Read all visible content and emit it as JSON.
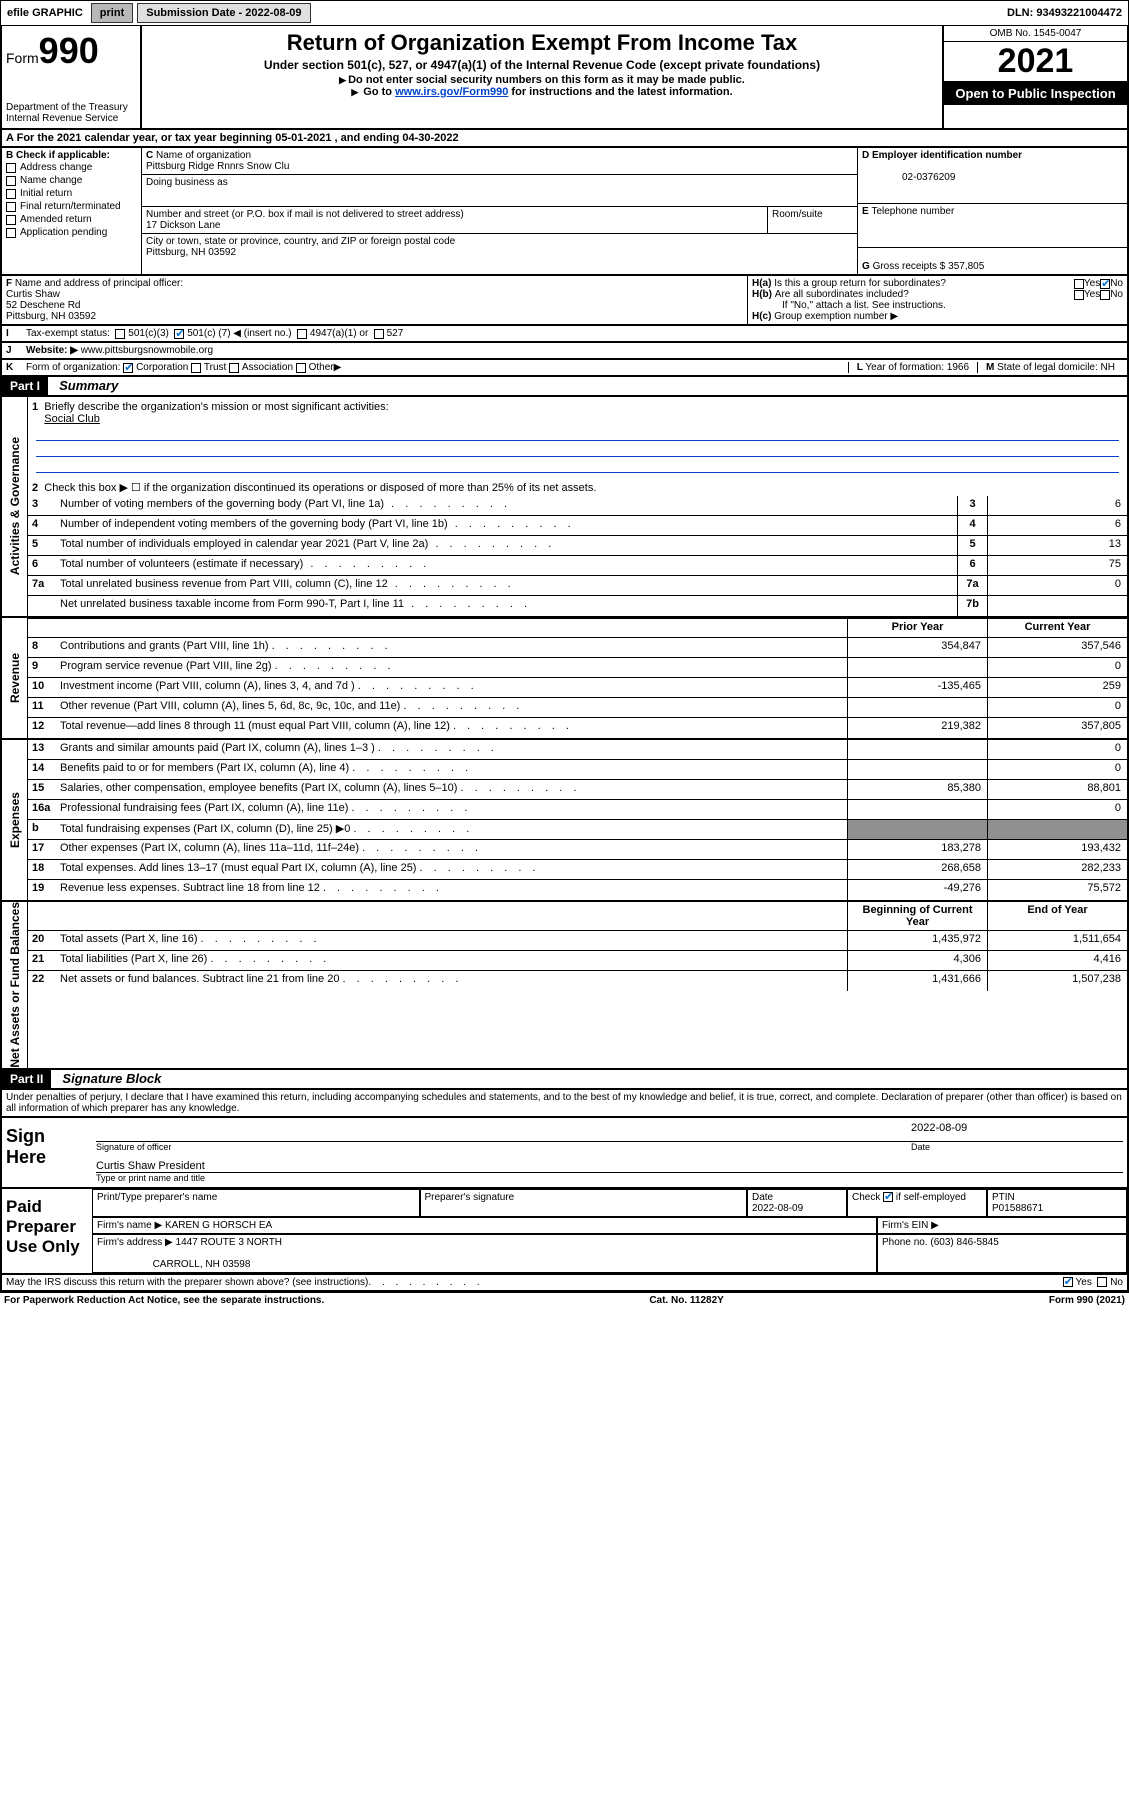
{
  "topbar": {
    "efile": "efile GRAPHIC",
    "print": "print",
    "sub_label": "Submission Date - 2022-08-09",
    "dln": "DLN: 93493221004472"
  },
  "header": {
    "form_label": "Form",
    "form_no": "990",
    "dept": "Department of the Treasury",
    "irs": "Internal Revenue Service",
    "title": "Return of Organization Exempt From Income Tax",
    "subtitle": "Under section 501(c), 527, or 4947(a)(1) of the Internal Revenue Code (except private foundations)",
    "note1": "Do not enter social security numbers on this form as it may be made public.",
    "note2_pre": "Go to ",
    "note2_link": "www.irs.gov/Form990",
    "note2_post": " for instructions and the latest information.",
    "omb": "OMB No. 1545-0047",
    "year": "2021",
    "open": "Open to Public Inspection"
  },
  "sectionA": {
    "text": "For the 2021 calendar year, or tax year beginning 05-01-2021   , and ending 04-30-2022"
  },
  "sectionB": {
    "label": "Check if applicable:",
    "items": [
      "Address change",
      "Name change",
      "Initial return",
      "Final return/terminated",
      "Amended return",
      "Application pending"
    ]
  },
  "sectionC": {
    "name_label": "Name of organization",
    "name": "Pittsburg Ridge Rnnrs Snow Clu",
    "dba_label": "Doing business as",
    "addr_label": "Number and street (or P.O. box if mail is not delivered to street address)",
    "room_label": "Room/suite",
    "addr": "17 Dickson Lane",
    "city_label": "City or town, state or province, country, and ZIP or foreign postal code",
    "city": "Pittsburg, NH  03592"
  },
  "sectionD": {
    "label": "Employer identification number",
    "ein": "02-0376209"
  },
  "sectionE": {
    "label": "Telephone number"
  },
  "sectionG": {
    "label": "Gross receipts $",
    "val": "357,805"
  },
  "sectionF": {
    "label": "Name and address of principal officer:",
    "name": "Curtis Shaw",
    "addr1": "52 Deschene Rd",
    "addr2": "Pittsburg, NH  03592"
  },
  "sectionH": {
    "a": "Is this a group return for subordinates?",
    "b": "Are all subordinates included?",
    "b_note": "If \"No,\" attach a list. See instructions.",
    "c": "Group exemption number"
  },
  "sectionI": {
    "label": "Tax-exempt status:",
    "o1": "501(c)(3)",
    "o2_pre": "501(c) (",
    "o2_val": "7",
    "o2_post": ") ◀ (insert no.)",
    "o3": "4947(a)(1) or",
    "o4": "527"
  },
  "sectionJ": {
    "label": "Website:",
    "val": "www.pittsburgsnowmobile.org"
  },
  "sectionK": {
    "label": "Form of organization:",
    "o1": "Corporation",
    "o2": "Trust",
    "o3": "Association",
    "o4": "Other"
  },
  "sectionL": {
    "label": "Year of formation:",
    "val": "1966"
  },
  "sectionM": {
    "label": "State of legal domicile:",
    "val": "NH"
  },
  "part1": {
    "tag": "Part I",
    "title": "Summary"
  },
  "summary": {
    "q1": "Briefly describe the organization's mission or most significant activities:",
    "q1_ans": "Social Club",
    "q2": "Check this box ▶ ☐  if the organization discontinued its operations or disposed of more than 25% of its net assets.",
    "ag": {
      "label": "Activities & Governance",
      "rows": [
        {
          "n": "3",
          "t": "Number of voting members of the governing body (Part VI, line 1a)",
          "box": "3",
          "v": "6"
        },
        {
          "n": "4",
          "t": "Number of independent voting members of the governing body (Part VI, line 1b)",
          "box": "4",
          "v": "6"
        },
        {
          "n": "5",
          "t": "Total number of individuals employed in calendar year 2021 (Part V, line 2a)",
          "box": "5",
          "v": "13"
        },
        {
          "n": "6",
          "t": "Total number of volunteers (estimate if necessary)",
          "box": "6",
          "v": "75"
        },
        {
          "n": "7a",
          "t": "Total unrelated business revenue from Part VIII, column (C), line 12",
          "box": "7a",
          "v": "0"
        },
        {
          "n": "",
          "t": "Net unrelated business taxable income from Form 990-T, Part I, line 11",
          "box": "7b",
          "v": ""
        }
      ]
    },
    "cols": {
      "prior": "Prior Year",
      "current": "Current Year"
    },
    "rev": {
      "label": "Revenue",
      "rows": [
        {
          "n": "8",
          "t": "Contributions and grants (Part VIII, line 1h)",
          "p": "354,847",
          "c": "357,546"
        },
        {
          "n": "9",
          "t": "Program service revenue (Part VIII, line 2g)",
          "p": "",
          "c": "0"
        },
        {
          "n": "10",
          "t": "Investment income (Part VIII, column (A), lines 3, 4, and 7d )",
          "p": "-135,465",
          "c": "259"
        },
        {
          "n": "11",
          "t": "Other revenue (Part VIII, column (A), lines 5, 6d, 8c, 9c, 10c, and 11e)",
          "p": "",
          "c": "0"
        },
        {
          "n": "12",
          "t": "Total revenue—add lines 8 through 11 (must equal Part VIII, column (A), line 12)",
          "p": "219,382",
          "c": "357,805"
        }
      ]
    },
    "exp": {
      "label": "Expenses",
      "rows": [
        {
          "n": "13",
          "t": "Grants and similar amounts paid (Part IX, column (A), lines 1–3 )",
          "p": "",
          "c": "0"
        },
        {
          "n": "14",
          "t": "Benefits paid to or for members (Part IX, column (A), line 4)",
          "p": "",
          "c": "0"
        },
        {
          "n": "15",
          "t": "Salaries, other compensation, employee benefits (Part IX, column (A), lines 5–10)",
          "p": "85,380",
          "c": "88,801"
        },
        {
          "n": "16a",
          "t": "Professional fundraising fees (Part IX, column (A), line 11e)",
          "p": "",
          "c": "0"
        },
        {
          "n": "b",
          "t": "Total fundraising expenses (Part IX, column (D), line 25) ▶0",
          "p": "GRAY",
          "c": "GRAY"
        },
        {
          "n": "17",
          "t": "Other expenses (Part IX, column (A), lines 11a–11d, 11f–24e)",
          "p": "183,278",
          "c": "193,432"
        },
        {
          "n": "18",
          "t": "Total expenses. Add lines 13–17 (must equal Part IX, column (A), line 25)",
          "p": "268,658",
          "c": "282,233"
        },
        {
          "n": "19",
          "t": "Revenue less expenses. Subtract line 18 from line 12",
          "p": "-49,276",
          "c": "75,572"
        }
      ]
    },
    "cols2": {
      "begin": "Beginning of Current Year",
      "end": "End of Year"
    },
    "na": {
      "label": "Net Assets or Fund Balances",
      "rows": [
        {
          "n": "20",
          "t": "Total assets (Part X, line 16)",
          "p": "1,435,972",
          "c": "1,511,654"
        },
        {
          "n": "21",
          "t": "Total liabilities (Part X, line 26)",
          "p": "4,306",
          "c": "4,416"
        },
        {
          "n": "22",
          "t": "Net assets or fund balances. Subtract line 21 from line 20",
          "p": "1,431,666",
          "c": "1,507,238"
        }
      ]
    }
  },
  "part2": {
    "tag": "Part II",
    "title": "Signature Block"
  },
  "perjury": "Under penalties of perjury, I declare that I have examined this return, including accompanying schedules and statements, and to the best of my knowledge and belief, it is true, correct, and complete. Declaration of preparer (other than officer) is based on all information of which preparer has any knowledge.",
  "sign": {
    "here": "Sign Here",
    "sig_officer": "Signature of officer",
    "date_label": "Date",
    "date": "2022-08-09",
    "name": "Curtis Shaw  President",
    "name_label": "Type or print name and title"
  },
  "prep": {
    "label": "Paid Preparer Use Only",
    "h1": "Print/Type preparer's name",
    "h2": "Preparer's signature",
    "h3": "Date",
    "h4_pre": "Check",
    "h4_post": "if self-employed",
    "h5": "PTIN",
    "date": "2022-08-09",
    "ptin": "P01588671",
    "firm_name_label": "Firm's name   ▶",
    "firm_name": "KAREN G HORSCH EA",
    "firm_ein_label": "Firm's EIN ▶",
    "firm_addr_label": "Firm's address ▶",
    "firm_addr1": "1447 ROUTE 3 NORTH",
    "firm_addr2": "CARROLL, NH  03598",
    "phone_label": "Phone no.",
    "phone": "(603) 846-5845"
  },
  "discuss": {
    "q": "May the IRS discuss this return with the preparer shown above? (see instructions)",
    "yes": "Yes",
    "no": "No"
  },
  "footer": {
    "left": "For Paperwork Reduction Act Notice, see the separate instructions.",
    "mid": "Cat. No. 11282Y",
    "right": "Form 990 (2021)"
  },
  "yesno": {
    "yes": "Yes",
    "no": "No"
  }
}
